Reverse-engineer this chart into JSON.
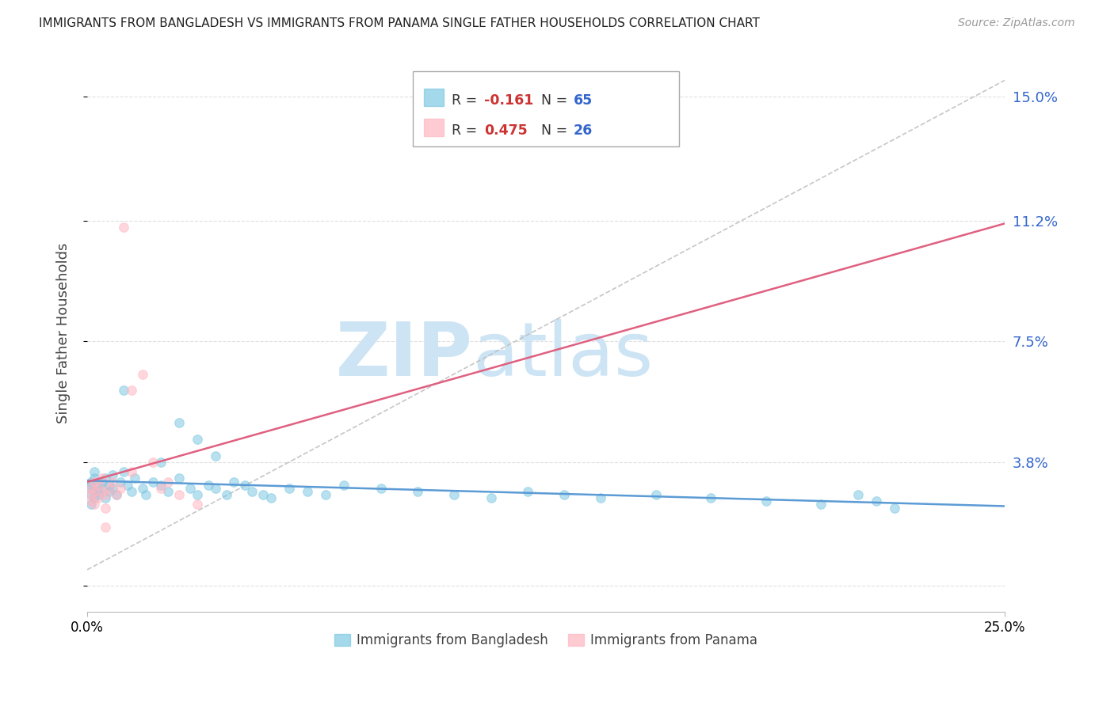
{
  "title": "IMMIGRANTS FROM BANGLADESH VS IMMIGRANTS FROM PANAMA SINGLE FATHER HOUSEHOLDS CORRELATION CHART",
  "source": "Source: ZipAtlas.com",
  "ylabel": "Single Father Households",
  "yticks": [
    0.0,
    0.038,
    0.075,
    0.112,
    0.15
  ],
  "ytick_labels": [
    "",
    "3.8%",
    "7.5%",
    "11.2%",
    "15.0%"
  ],
  "xlim": [
    0.0,
    0.25
  ],
  "ylim": [
    -0.008,
    0.163
  ],
  "bangladesh_color": "#7ec8e3",
  "panama_color": "#ffb6c1",
  "bangladesh_line_color": "#5b9bd5",
  "panama_line_color": "#e06080",
  "bangladesh_R": -0.161,
  "bangladesh_N": 65,
  "panama_R": 0.475,
  "panama_N": 26,
  "legend_R_color": "#cc3333",
  "legend_N_color": "#3366cc",
  "background_color": "#ffffff",
  "watermark_zip": "ZIP",
  "watermark_atlas": "atlas",
  "watermark_color": "#cde4f5",
  "grid_color": "#dddddd",
  "scatter_alpha": 0.55,
  "scatter_size": 70,
  "diag_line_color": "#c0c0c0",
  "bottom_legend_bd_label": "Immigrants from Bangladesh",
  "bottom_legend_pa_label": "Immigrants from Panama",
  "bd_x": [
    0.001,
    0.001,
    0.001,
    0.001,
    0.001,
    0.002,
    0.002,
    0.002,
    0.002,
    0.003,
    0.003,
    0.003,
    0.004,
    0.004,
    0.005,
    0.005,
    0.006,
    0.006,
    0.007,
    0.007,
    0.008,
    0.009,
    0.01,
    0.011,
    0.012,
    0.013,
    0.015,
    0.016,
    0.018,
    0.02,
    0.022,
    0.025,
    0.028,
    0.03,
    0.033,
    0.035,
    0.038,
    0.04,
    0.043,
    0.045,
    0.048,
    0.05,
    0.055,
    0.06,
    0.065,
    0.07,
    0.08,
    0.09,
    0.1,
    0.11,
    0.12,
    0.13,
    0.14,
    0.155,
    0.17,
    0.185,
    0.2,
    0.21,
    0.215,
    0.22,
    0.025,
    0.03,
    0.035,
    0.01,
    0.02
  ],
  "bd_y": [
    0.03,
    0.028,
    0.032,
    0.025,
    0.031,
    0.029,
    0.033,
    0.027,
    0.035,
    0.031,
    0.029,
    0.028,
    0.032,
    0.03,
    0.033,
    0.027,
    0.031,
    0.029,
    0.034,
    0.03,
    0.028,
    0.032,
    0.035,
    0.031,
    0.029,
    0.033,
    0.03,
    0.028,
    0.032,
    0.031,
    0.029,
    0.033,
    0.03,
    0.028,
    0.031,
    0.03,
    0.028,
    0.032,
    0.031,
    0.029,
    0.028,
    0.027,
    0.03,
    0.029,
    0.028,
    0.031,
    0.03,
    0.029,
    0.028,
    0.027,
    0.029,
    0.028,
    0.027,
    0.028,
    0.027,
    0.026,
    0.025,
    0.028,
    0.026,
    0.024,
    0.05,
    0.045,
    0.04,
    0.06,
    0.038
  ],
  "pa_x": [
    0.001,
    0.001,
    0.001,
    0.002,
    0.002,
    0.002,
    0.003,
    0.003,
    0.004,
    0.004,
    0.005,
    0.005,
    0.006,
    0.007,
    0.008,
    0.009,
    0.01,
    0.012,
    0.015,
    0.018,
    0.02,
    0.022,
    0.025,
    0.03,
    0.012,
    0.005
  ],
  "pa_y": [
    0.03,
    0.028,
    0.026,
    0.032,
    0.029,
    0.025,
    0.031,
    0.027,
    0.033,
    0.029,
    0.028,
    0.024,
    0.03,
    0.032,
    0.028,
    0.03,
    0.11,
    0.035,
    0.065,
    0.038,
    0.03,
    0.032,
    0.028,
    0.025,
    0.06,
    0.018
  ]
}
